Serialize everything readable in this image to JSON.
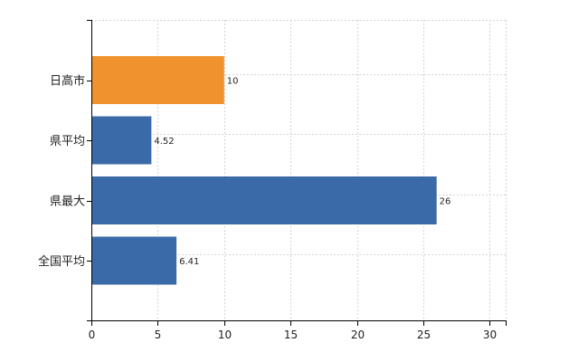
{
  "chart_data": {
    "type": "bar",
    "orientation": "horizontal",
    "categories": [
      "日高市",
      "県平均",
      "県最大",
      "全国平均"
    ],
    "values": [
      10,
      4.52,
      26,
      6.41
    ],
    "data_labels": [
      "10",
      "4.52",
      "26",
      "6.41"
    ],
    "bar_colors": [
      "#f0922e",
      "#3a6aa8",
      "#3a6aa8",
      "#3a6aa8"
    ],
    "title": "",
    "xlabel": "",
    "ylabel": "",
    "xlim": [
      0,
      31.2
    ],
    "xticks": [
      0,
      5,
      10,
      15,
      20,
      25,
      30
    ],
    "xtick_labels": [
      "0",
      "5",
      "10",
      "15",
      "20",
      "25",
      "30"
    ],
    "grid": true,
    "legend": "none"
  }
}
